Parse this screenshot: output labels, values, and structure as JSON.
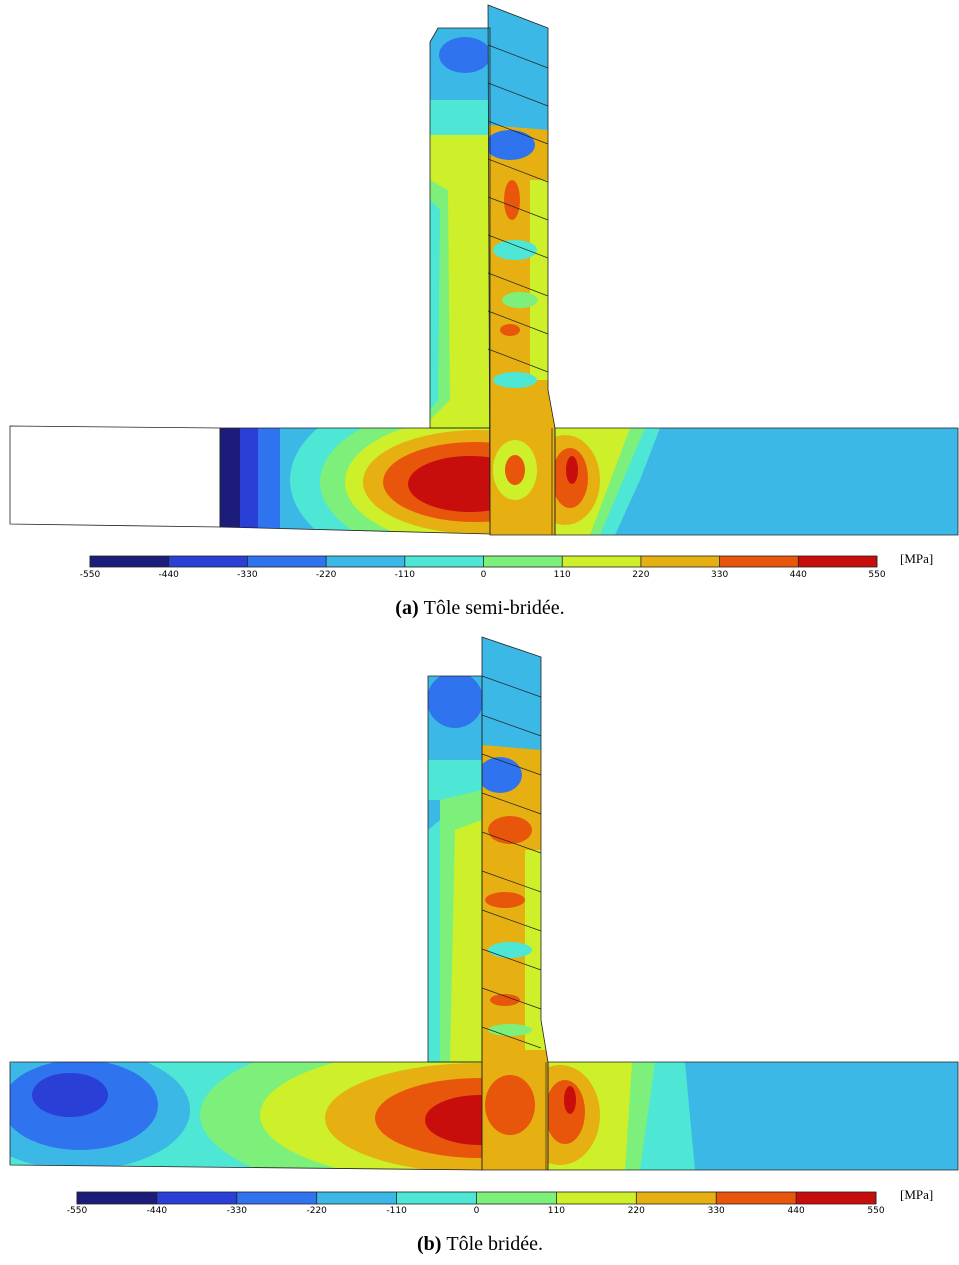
{
  "figures": [
    {
      "colorbar": {
        "ticks": [
          -550,
          -440,
          -330,
          -220,
          -110,
          0,
          110,
          220,
          330,
          440,
          550
        ],
        "colors": [
          "#1c1c7a",
          "#2a3fd6",
          "#2f73ef",
          "#3bb8e6",
          "#4ee6d4",
          "#7df07c",
          "#cdf02a",
          "#e6b012",
          "#e8560c",
          "#c80d0d"
        ],
        "unit": "[MPa]"
      },
      "caption": {
        "label": "(a)",
        "text": "Tôle semi-bridée."
      }
    },
    {
      "colorbar": {
        "ticks": [
          -550,
          -440,
          -330,
          -220,
          -110,
          0,
          110,
          220,
          330,
          440,
          550
        ],
        "colors": [
          "#1c1c7a",
          "#2a3fd6",
          "#2f73ef",
          "#3bb8e6",
          "#4ee6d4",
          "#7df07c",
          "#cdf02a",
          "#e6b012",
          "#e8560c",
          "#c80d0d"
        ],
        "unit": "[MPa]"
      },
      "caption": {
        "label": "(b)",
        "text": "Tôle bridée."
      }
    }
  ]
}
